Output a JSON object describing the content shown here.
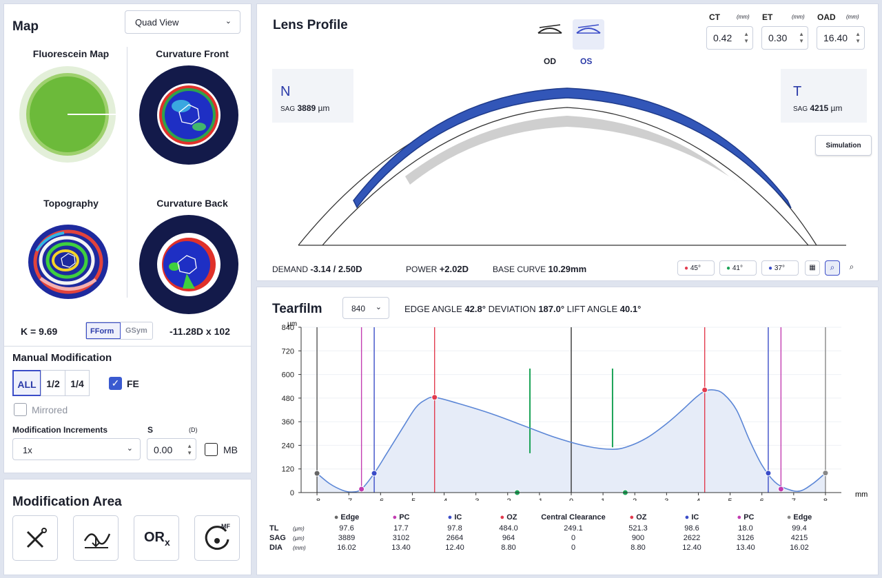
{
  "map": {
    "title": "Map",
    "view_select": "Quad View",
    "quad": {
      "fluorescein": "Fluorescein Map",
      "curvature_front": "Curvature Front",
      "topography": "Topography",
      "curvature_back": "Curvature Back"
    },
    "k_value": "K = 9.69",
    "fform": "FForm",
    "gsym": "GSym",
    "cyl_value": "-11.28D x 102"
  },
  "manual": {
    "title": "Manual Modification",
    "segments": [
      "ALL",
      "1/2",
      "1/4"
    ],
    "fe_label": "FE",
    "mirrored_label": "Mirrored",
    "increments_label": "Modification Increments",
    "s_label": "S",
    "s_unit": "(D)",
    "increment_value": "1x",
    "s_value": "0.00",
    "mb_label": "MB"
  },
  "modification_area": {
    "title": "Modification Area",
    "tiles": [
      "wand-icon",
      "curve-adjust-icon",
      "orx-icon",
      "mf-icon"
    ],
    "orx_text": "OR",
    "orx_sub": "x",
    "mf_text": "MF"
  },
  "lens": {
    "title": "Lens Profile",
    "od": "OD",
    "os": "OS",
    "ct_label": "CT",
    "ct_unit": "(mm)",
    "ct_value": "0.42",
    "et_label": "ET",
    "et_unit": "(mm)",
    "et_value": "0.30",
    "oad_label": "OAD",
    "oad_unit": "(mm)",
    "oad_value": "16.40",
    "n_letter": "N",
    "n_sag_label": "SAG",
    "n_sag_value": "3889",
    "n_sag_unit": "µm",
    "t_letter": "T",
    "t_sag_label": "SAG",
    "t_sag_value": "4215",
    "t_sag_unit": "µm",
    "simulation": "Simulation",
    "demand_label": "DEMAND",
    "demand_value": "-3.14 / 2.50D",
    "power_label": "POWER",
    "power_value": "+2.02D",
    "base_curve_label": "BASE CURVE",
    "base_curve_value": "10.29mm",
    "angle_buttons": [
      "45°",
      "41°",
      "37°"
    ],
    "angle_colors": [
      "#e23b4e",
      "#1aa356",
      "#3a4cc8"
    ]
  },
  "tearfilm": {
    "title": "Tearfilm",
    "select_value": "840",
    "edge_angle_label": "EDGE ANGLE",
    "edge_angle_value": "42.8°",
    "deviation_label": "DEVIATION",
    "deviation_value": "187.0°",
    "lift_angle_label": "LIFT ANGLE",
    "lift_angle_value": "40.1°",
    "y_unit": "µm",
    "x_unit": "mm",
    "table": {
      "headers": [
        "Edge",
        "PC",
        "IC",
        "OZ",
        "Central Clearance",
        "OZ",
        "IC",
        "PC",
        "Edge"
      ],
      "header_colors": [
        "#666666",
        "#c23bb0",
        "#3a4cc8",
        "#e23b4e",
        "",
        "#e23b4e",
        "#3a4cc8",
        "#c23bb0",
        "#888888"
      ],
      "rows": [
        {
          "label": "TL",
          "unit": "(µm)",
          "values": [
            "97.6",
            "17.7",
            "97.8",
            "484.0",
            "249.1",
            "521.3",
            "98.6",
            "18.0",
            "99.4"
          ]
        },
        {
          "label": "SAG",
          "unit": "(µm)",
          "values": [
            "3889",
            "3102",
            "2664",
            "964",
            "0",
            "900",
            "2622",
            "3126",
            "4215"
          ]
        },
        {
          "label": "DIA",
          "unit": "(mm)",
          "values": [
            "16.02",
            "13.40",
            "12.40",
            "8.80",
            "0",
            "8.80",
            "12.40",
            "13.40",
            "16.02"
          ]
        }
      ]
    }
  },
  "chart_data": {
    "type": "area",
    "title": "",
    "xlabel": "mm",
    "ylabel": "µm",
    "xlim": [
      -8.5,
      8.5
    ],
    "ylim": [
      0,
      840
    ],
    "x_ticks": [
      -8,
      -7,
      -6,
      -5,
      -4,
      -3,
      -2,
      -1,
      0,
      1,
      2,
      3,
      4,
      5,
      6,
      7,
      8
    ],
    "y_ticks": [
      0,
      120,
      240,
      360,
      480,
      600,
      720,
      840
    ],
    "series": [
      {
        "x": [
          -8.0,
          -7.6,
          -7.2,
          -6.9,
          -6.6,
          -6.2,
          -5.8,
          -5.3,
          -4.9,
          -4.6,
          -4.3,
          -3.6,
          -2.5,
          -1.5,
          -0.5,
          0.5,
          1.3,
          1.8,
          2.4,
          3.0,
          3.5,
          3.9,
          4.2,
          4.5,
          4.8,
          5.2,
          5.6,
          6.0,
          6.4,
          6.8,
          7.2,
          7.6,
          8.0
        ],
        "y": [
          97.6,
          45,
          12,
          3,
          17.7,
          97.8,
          200,
          330,
          430,
          470,
          484,
          455,
          400,
          340,
          280,
          235,
          220,
          235,
          280,
          350,
          420,
          480,
          515,
          521,
          500,
          420,
          270,
          140,
          55,
          18,
          8,
          45,
          99.4
        ]
      }
    ],
    "markers": [
      {
        "name": "Edge",
        "x": -8.0,
        "y": 97.6,
        "color": "#666666"
      },
      {
        "name": "PC",
        "x": -6.6,
        "y": 17.7,
        "color": "#c23bb0"
      },
      {
        "name": "IC",
        "x": -6.2,
        "y": 97.8,
        "color": "#3a4cc8"
      },
      {
        "name": "OZ",
        "x": -4.3,
        "y": 484.0,
        "color": "#e23b4e"
      },
      {
        "name": "OZ",
        "x": 4.2,
        "y": 521.3,
        "color": "#e23b4e"
      },
      {
        "name": "IC",
        "x": 6.2,
        "y": 98.6,
        "color": "#3a4cc8"
      },
      {
        "name": "PC",
        "x": 6.6,
        "y": 18.0,
        "color": "#c23bb0"
      },
      {
        "name": "Edge",
        "x": 8.0,
        "y": 99.4,
        "color": "#888888"
      },
      {
        "name": "",
        "x": -1.7,
        "y": 0,
        "color": "#1aa356"
      },
      {
        "name": "",
        "x": 1.7,
        "y": 0,
        "color": "#1aa356"
      }
    ],
    "vlines": [
      {
        "x": -8.0,
        "color": "#555555"
      },
      {
        "x": -6.6,
        "color": "#c23bb0"
      },
      {
        "x": -6.2,
        "color": "#3a4cc8"
      },
      {
        "x": -4.3,
        "color": "#e23b4e"
      },
      {
        "x": 0.0,
        "color": "#333333"
      },
      {
        "x": 4.2,
        "color": "#e23b4e"
      },
      {
        "x": 6.2,
        "color": "#3a4cc8"
      },
      {
        "x": 6.6,
        "color": "#c23bb0"
      },
      {
        "x": 8.0,
        "color": "#888888"
      }
    ],
    "green_segments": [
      {
        "x": -1.3,
        "y0": 200,
        "y1": 630
      },
      {
        "x": 1.3,
        "y0": 230,
        "y1": 630
      }
    ]
  }
}
